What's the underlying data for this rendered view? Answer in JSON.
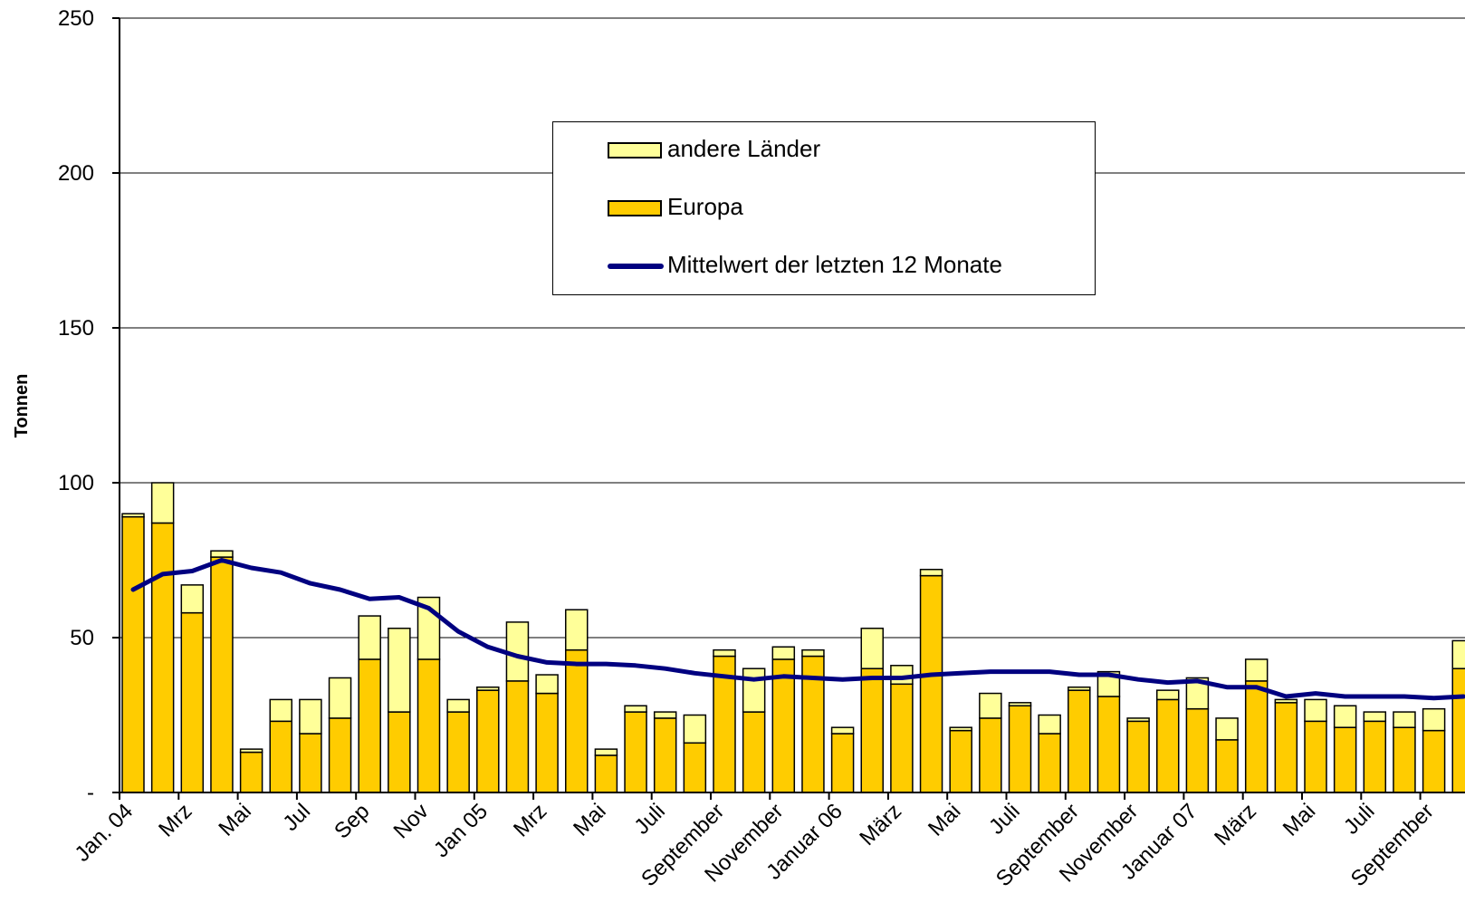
{
  "chart_data": {
    "type": "bar",
    "stacked": true,
    "ylabel": "Tonnen",
    "xlabel": "",
    "ylim": [
      0,
      250
    ],
    "yticks": [
      0,
      50,
      100,
      150,
      200,
      250
    ],
    "ytick_labels": [
      "-",
      "50",
      "100",
      "150",
      "200",
      "250"
    ],
    "grid": true,
    "legend_position": "top-center",
    "categories": [
      "Jan. 04",
      "Feb",
      "Mrz",
      "Apr",
      "Mai",
      "Jun",
      "Jul",
      "Aug",
      "Sep",
      "Okt",
      "Nov",
      "Dez",
      "Jan 05",
      "Feb",
      "Mrz",
      "Apr",
      "Mai",
      "Jun",
      "Juli",
      "August",
      "September",
      "Oktober",
      "November",
      "Dezember",
      "Januar 06",
      "Februar",
      "März",
      "April",
      "Mai",
      "Juni",
      "Juli",
      "August",
      "September",
      "Oktober",
      "November",
      "Dezember",
      "Januar 07",
      "Februar",
      "März",
      "April",
      "Mai",
      "Juni",
      "Juli",
      "August",
      "September",
      "Oktober"
    ],
    "visible_tick_labels": [
      "Jan. 04",
      "Mrz",
      "Mai",
      "Jul",
      "Sep",
      "Nov",
      "Jan 05",
      "Mrz",
      "Mai",
      "Juli",
      "September",
      "November",
      "Januar 06",
      "März",
      "Mai",
      "Juli",
      "September",
      "November",
      "Januar 07",
      "März",
      "Mai",
      "Juli",
      "September"
    ],
    "series": [
      {
        "name": "Europa",
        "color": "#FFCC00",
        "values": [
          89,
          87,
          58,
          76,
          13,
          23,
          19,
          24,
          43,
          26,
          43,
          26,
          33,
          36,
          32,
          46,
          12,
          26,
          24,
          16,
          44,
          26,
          43,
          44,
          19,
          40,
          35,
          70,
          20,
          24,
          28,
          19,
          33,
          31,
          23,
          30,
          27,
          17,
          36,
          29,
          23,
          21,
          23,
          21,
          20,
          40
        ]
      },
      {
        "name": "andere Länder",
        "color": "#FFFF99",
        "values": [
          1,
          13,
          9,
          2,
          1,
          7,
          11,
          13,
          14,
          27,
          20,
          4,
          1,
          19,
          6,
          13,
          2,
          2,
          2,
          9,
          2,
          14,
          4,
          2,
          2,
          13,
          6,
          2,
          1,
          8,
          1,
          6,
          1,
          8,
          1,
          3,
          10,
          7,
          7,
          1,
          7,
          7,
          3,
          5,
          7,
          9
        ]
      },
      {
        "name": "Mittelwert der letzten 12 Monate",
        "type": "line",
        "color": "#000080",
        "values": [
          65.5,
          70.5,
          71.5,
          75,
          72.5,
          71,
          67.5,
          65.5,
          62.5,
          63,
          59.5,
          52,
          47,
          44,
          42,
          41.5,
          41.5,
          41,
          40,
          38.5,
          37.5,
          36.5,
          37.5,
          37,
          36.5,
          37,
          37,
          38,
          38.5,
          39,
          39,
          39,
          38,
          38,
          36.5,
          35.5,
          36,
          34,
          34,
          31,
          32,
          31,
          31,
          31,
          30.5,
          31
        ]
      }
    ]
  }
}
